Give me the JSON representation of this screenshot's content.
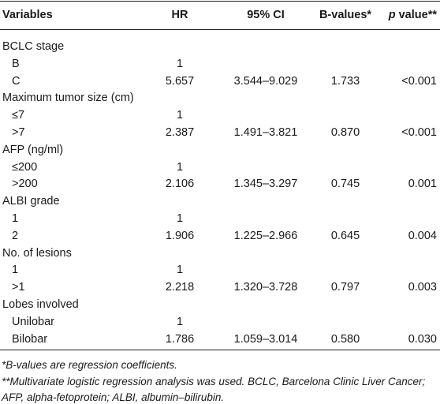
{
  "table": {
    "header": {
      "variables": "Variables",
      "hr": "HR",
      "ci": "95% CI",
      "b": "B-values*",
      "p": {
        "italic": "p",
        "text": " value**"
      }
    },
    "groups": [
      {
        "name": "BCLC stage",
        "rows": [
          {
            "label": "B",
            "hr": "1"
          },
          {
            "label": "C",
            "hr": "5.657",
            "ci": "3.544–9.029",
            "b": "1.733",
            "p": "<0.001"
          }
        ]
      },
      {
        "name": "Maximum tumor size (cm)",
        "rows": [
          {
            "label": "≤7",
            "hr": "1"
          },
          {
            "label": ">7",
            "hr": "2.387",
            "ci": "1.491–3.821",
            "b": "0.870",
            "p": "<0.001"
          }
        ]
      },
      {
        "name": "AFP (ng/ml)",
        "rows": [
          {
            "label": "≤200",
            "hr": "1"
          },
          {
            "label": ">200",
            "hr": "2.106",
            "ci": "1.345–3.297",
            "b": "0.745",
            "p": "0.001"
          }
        ]
      },
      {
        "name": "ALBI grade",
        "rows": [
          {
            "label": "1",
            "hr": "1"
          },
          {
            "label": "2",
            "hr": "1.906",
            "ci": "1.225–2.966",
            "b": "0.645",
            "p": "0.004"
          }
        ]
      },
      {
        "name": "No. of lesions",
        "rows": [
          {
            "label": "1",
            "hr": "1"
          },
          {
            "label": ">1",
            "hr": "2.218",
            "ci": "1.320–3.728",
            "b": "0.797",
            "p": "0.003"
          }
        ]
      },
      {
        "name": "Lobes involved",
        "rows": [
          {
            "label": "Unilobar",
            "hr": "1"
          },
          {
            "label": "Bilobar",
            "hr": "1.786",
            "ci": "1.059–3.014",
            "b": "0.580",
            "p": "0.030"
          }
        ]
      }
    ],
    "notes": [
      "*B-values are regression coefficients.",
      "**Multivariate logistic regression analysis was used. BCLC, Barcelona Clinic Liver Cancer; AFP, alpha-fetoprotein; ALBI, albumin–bilirubin."
    ]
  }
}
